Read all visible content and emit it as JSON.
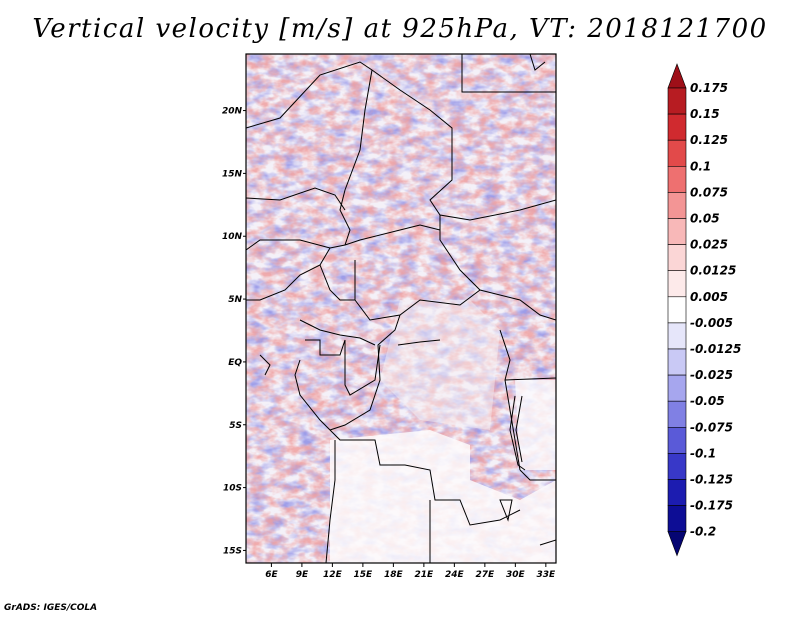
{
  "title": "Vertical velocity [m/s] at 925hPa, VT: 2018121700",
  "credit": "GrADS: IGES/COLA",
  "map": {
    "lon_labels": [
      "6E",
      "9E",
      "12E",
      "15E",
      "18E",
      "21E",
      "24E",
      "27E",
      "30E",
      "33E"
    ],
    "lat_labels": [
      "20N",
      "15N",
      "10N",
      "5N",
      "EQ",
      "5S",
      "10S",
      "15S"
    ],
    "lon_range": [
      3.5,
      34.0
    ],
    "lat_range": [
      -16.0,
      24.5
    ]
  },
  "colorbar": {
    "labels": [
      "0.175",
      "0.15",
      "0.125",
      "0.1",
      "0.075",
      "0.05",
      "0.025",
      "0.0125",
      "0.005",
      "-0.005",
      "-0.0125",
      "-0.025",
      "-0.05",
      "-0.075",
      "-0.1",
      "-0.125",
      "-0.175",
      "-0.2"
    ],
    "colors": [
      "#9e0f18",
      "#b71c22",
      "#d02a2f",
      "#e24a4a",
      "#ee7070",
      "#f39595",
      "#f8b8b8",
      "#fbd6d6",
      "#fdeaea",
      "#ffffff",
      "#e6e6fa",
      "#c9c9f5",
      "#a6a6ee",
      "#8080e4",
      "#5a5ad8",
      "#3838c8",
      "#1c1cb0",
      "#0d0d95",
      "#050572"
    ]
  }
}
